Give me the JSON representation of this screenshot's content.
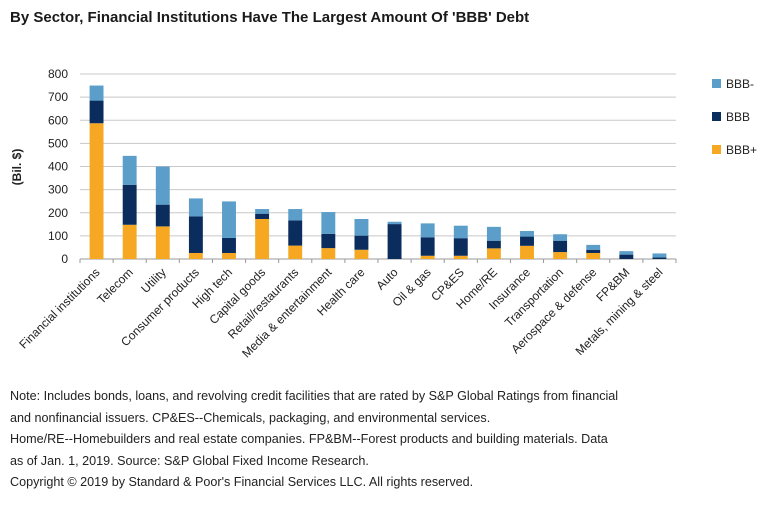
{
  "chart_data": {
    "type": "bar",
    "stacked": true,
    "title": "By Sector, Financial Institutions Have The Largest Amount Of 'BBB' Debt",
    "xlabel": "",
    "ylabel": "(Bil. $)",
    "ylim": [
      0,
      800
    ],
    "yticks": [
      "0",
      "100",
      "200",
      "300",
      "400",
      "500",
      "600",
      "700",
      "800"
    ],
    "grid": true,
    "legend_position": "right",
    "categories": [
      "Financial institutions",
      "Telecom",
      "Utility",
      "Consumer products",
      "High tech",
      "Capital goods",
      "Retail/restaurants",
      "Media & entertainment",
      "Health care",
      "Auto",
      "Oil & gas",
      "CP&ES",
      "Home/RE",
      "Insurance",
      "Transportation",
      "Aerospace & defense",
      "FP&BM",
      "Metals, mining & steel"
    ],
    "series": [
      {
        "name": "BBB+",
        "color": "#f7a823",
        "values": [
          587,
          148,
          141,
          26,
          26,
          173,
          58,
          47,
          40,
          0,
          14,
          14,
          46,
          57,
          30,
          26,
          0,
          0
        ]
      },
      {
        "name": "BBB",
        "color": "#0b2d5e",
        "values": [
          98,
          173,
          94,
          158,
          65,
          23,
          109,
          62,
          61,
          151,
          80,
          76,
          33,
          40,
          49,
          14,
          19,
          7
        ]
      },
      {
        "name": "BBB-",
        "color": "#5a9ec9",
        "values": [
          65,
          125,
          165,
          78,
          158,
          20,
          49,
          94,
          72,
          10,
          60,
          54,
          60,
          24,
          28,
          21,
          15,
          17
        ]
      }
    ],
    "legend_order": [
      "BBB-",
      "BBB",
      "BBB+"
    ]
  },
  "notes": [
    "Note: Includes bonds, loans, and revolving credit facilities that are rated by S&P Global Ratings from financial",
    "and nonfinancial issuers. CP&ES--Chemicals, packaging, and environmental services.",
    "Home/RE--Homebuilders and real estate companies. FP&BM--Forest products and building materials. Data",
    "as of Jan. 1, 2019. Source: S&P Global Fixed Income Research.",
    "Copyright © 2019 by Standard & Poor's Financial Services LLC. All rights reserved."
  ]
}
